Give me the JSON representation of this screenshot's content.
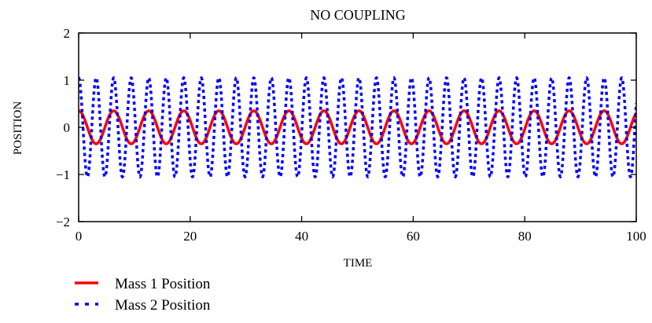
{
  "chart_data": {
    "type": "line",
    "title": "NO COUPLING",
    "xlabel": "TIME",
    "ylabel": "POSITION",
    "xlim": [
      0,
      100
    ],
    "ylim": [
      -2,
      2
    ],
    "xticks": [
      0,
      20,
      40,
      60,
      80,
      100
    ],
    "yticks": [
      -2,
      -1,
      0,
      1,
      2
    ],
    "ytick_labels": [
      "−2",
      "−1",
      "0",
      "1",
      "2"
    ],
    "grid": false,
    "legend_position": "bottom-left",
    "series": [
      {
        "name": "Mass 1 Position",
        "color": "#ff0000",
        "style": "solid",
        "function": "0.35*cos(t)",
        "amplitude": 0.35,
        "angular_frequency": 1.0,
        "x": [
          0,
          3.14,
          6.28,
          9.42,
          12.57,
          15.71,
          18.85,
          21.99,
          25.13,
          28.27,
          31.42,
          34.56,
          37.7,
          40.84,
          43.98,
          47.12,
          50.27,
          53.41,
          56.55,
          59.69,
          62.83,
          65.97,
          69.12,
          72.26,
          75.4,
          78.54,
          81.68,
          84.82,
          87.96,
          91.11,
          94.25,
          97.39,
          100
        ],
        "values": [
          0.35,
          -0.35,
          0.35,
          -0.35,
          0.35,
          -0.35,
          0.35,
          -0.35,
          0.35,
          -0.35,
          0.35,
          -0.35,
          0.35,
          -0.35,
          0.35,
          -0.35,
          0.35,
          -0.35,
          0.35,
          -0.35,
          0.35,
          -0.35,
          0.35,
          -0.35,
          0.35,
          -0.35,
          0.35,
          -0.35,
          0.35,
          -0.35,
          0.35,
          -0.35,
          0.3
        ]
      },
      {
        "name": "Mass 2 Position",
        "color": "#0000ff",
        "style": "dotted",
        "function": "1.05*cos(2t)",
        "amplitude": 1.05,
        "angular_frequency": 2.0,
        "x": [
          0,
          1.57,
          3.14,
          4.71,
          6.28,
          7.85,
          9.42,
          11.0,
          12.57,
          14.14,
          15.71,
          17.28,
          18.85,
          20.42,
          21.99,
          23.56,
          25.13,
          26.7,
          28.27,
          29.85,
          31.42,
          32.99,
          34.56,
          36.13,
          37.7,
          39.27,
          40.84,
          42.41,
          43.98,
          45.55,
          47.12,
          48.69,
          50.27,
          51.84,
          53.41,
          54.98,
          56.55,
          58.12,
          59.69,
          61.26,
          62.83,
          64.4,
          65.97,
          67.54,
          69.12,
          70.69,
          72.26,
          73.83,
          75.4,
          76.97,
          78.54,
          80.11,
          81.68,
          83.25,
          84.82,
          86.39,
          87.96,
          89.54,
          91.11,
          92.68,
          94.25,
          95.82,
          97.39,
          98.96,
          100
        ],
        "values": [
          1.05,
          -1.05,
          1.05,
          -1.05,
          1.05,
          -1.05,
          1.05,
          -1.05,
          1.05,
          -1.05,
          1.05,
          -1.05,
          1.05,
          -1.05,
          1.05,
          -1.05,
          1.05,
          -1.05,
          1.05,
          -1.05,
          1.05,
          -1.05,
          1.05,
          -1.05,
          1.05,
          -1.05,
          1.05,
          -1.05,
          1.05,
          -1.05,
          1.05,
          -1.05,
          1.05,
          -1.05,
          1.05,
          -1.05,
          1.05,
          -1.05,
          1.05,
          -1.05,
          1.05,
          -1.05,
          1.05,
          -1.05,
          1.05,
          -1.05,
          1.05,
          -1.05,
          1.05,
          -1.05,
          1.05,
          -1.05,
          1.05,
          -1.05,
          1.05,
          -1.05,
          1.05,
          -1.05,
          1.05,
          -1.05,
          1.05,
          -1.05,
          1.05,
          -1.05,
          0.86
        ]
      }
    ]
  }
}
